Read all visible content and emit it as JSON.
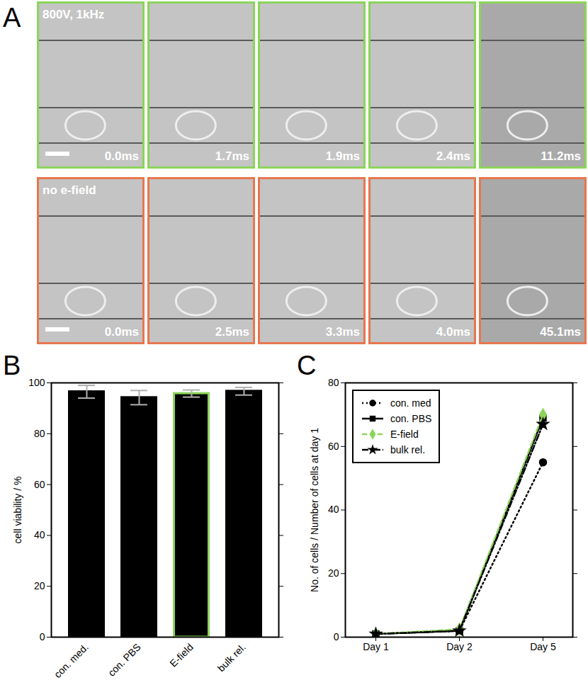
{
  "chart_data": [
    {
      "type": "image_panels",
      "title": "A",
      "rows": [
        {
          "label": "800V, 1kHz",
          "color": "#8bd45a",
          "frames": [
            "0.0ms",
            "1.7ms",
            "1.9ms",
            "2.4ms",
            "11.2ms"
          ]
        },
        {
          "label": "no e-field",
          "color": "#e8764f",
          "frames": [
            "0.0ms",
            "2.5ms",
            "3.3ms",
            "4.0ms",
            "45.1ms"
          ]
        }
      ]
    },
    {
      "type": "bar",
      "title": "B",
      "categories": [
        "con. med.",
        "con. PBS",
        "E-field",
        "bulk rel."
      ],
      "values": [
        96.5,
        94.2,
        95.8,
        96.7
      ],
      "errors": [
        2.5,
        2.8,
        1.4,
        1.5
      ],
      "colors": [
        "#000000",
        "#000000",
        "#8bd45a",
        "#000000"
      ],
      "y_label": "cell viability / %",
      "ylim": [
        0,
        100
      ],
      "yticks": [
        0,
        20,
        40,
        60,
        80,
        100
      ]
    },
    {
      "type": "line",
      "title": "C",
      "categories": [
        "Day 1",
        "Day 2",
        "Day 5"
      ],
      "y_label": "No. of cells / Number of cells at day 1",
      "ylim": [
        0,
        80
      ],
      "yticks": [
        0,
        20,
        40,
        60,
        80
      ],
      "legend": "top-left",
      "series": [
        {
          "name": "con. med",
          "color": "#000000",
          "marker": "circle",
          "line_style": "dotted",
          "values": [
            1,
            2,
            55
          ]
        },
        {
          "name": "con. PBS",
          "color": "#000000",
          "marker": "square",
          "line_style": "solid",
          "values": [
            1,
            2,
            69
          ]
        },
        {
          "name": "E-field",
          "color": "#8bd45a",
          "marker": "diamond",
          "line_style": "dashed",
          "values": [
            1,
            2.5,
            70
          ]
        },
        {
          "name": "bulk rel.",
          "color": "#000000",
          "marker": "star",
          "line_style": "dashdot",
          "values": [
            1,
            2,
            67
          ]
        }
      ]
    }
  ]
}
